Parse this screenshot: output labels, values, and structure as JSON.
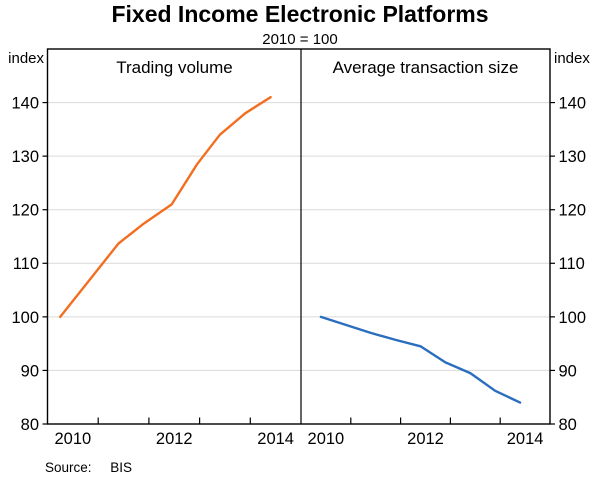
{
  "header": {
    "title": "Fixed Income Electronic Platforms",
    "subtitle": "2010 = 100"
  },
  "footer": {
    "source_label": "Source:",
    "source_value": "BIS"
  },
  "chart_data": {
    "type": "line",
    "title": "Fixed Income Electronic Platforms",
    "subtitle": "2010 = 100",
    "y_unit_left": "index",
    "y_unit_right": "index",
    "ylim": [
      80,
      150
    ],
    "y_ticks": [
      80,
      90,
      100,
      110,
      120,
      130,
      140
    ],
    "grid": "horizontal",
    "grid_color": "#d9d9d9",
    "axis_color": "#000000",
    "panels": [
      {
        "label": "Trading volume",
        "color": "#f26f21",
        "xlim": [
          2010,
          2015
        ],
        "x_minor_ticks": [
          2011,
          2012,
          2013,
          2014
        ],
        "x_tick_labels": [
          {
            "text": "2010",
            "at": 2010.5
          },
          {
            "text": "2012",
            "at": 2012.5
          },
          {
            "text": "2014",
            "at": 2014.5
          }
        ],
        "series": [
          {
            "name": "Trading volume",
            "x": [
              2010.25,
              2011.4,
              2011.9,
              2012.45,
              2012.95,
              2013.4,
              2013.9,
              2014.4
            ],
            "values": [
              100,
              113.7,
              117.4,
              121,
              128.5,
              134,
              138,
              141
            ]
          }
        ]
      },
      {
        "label": "Average transaction size",
        "color": "#2a6ebd",
        "xlim": [
          2010,
          2015
        ],
        "x_minor_ticks": [
          2011,
          2012,
          2013,
          2014
        ],
        "x_tick_labels": [
          {
            "text": "2010",
            "at": 2010.5
          },
          {
            "text": "2012",
            "at": 2012.5
          },
          {
            "text": "2014",
            "at": 2014.5
          }
        ],
        "series": [
          {
            "name": "Average transaction size",
            "x": [
              2010.4,
              2011.4,
              2011.9,
              2012.4,
              2012.9,
              2013.4,
              2013.9,
              2014.4
            ],
            "values": [
              100,
              97,
              95.7,
              94.5,
              91.5,
              89.5,
              86.2,
              84
            ]
          }
        ]
      }
    ]
  }
}
